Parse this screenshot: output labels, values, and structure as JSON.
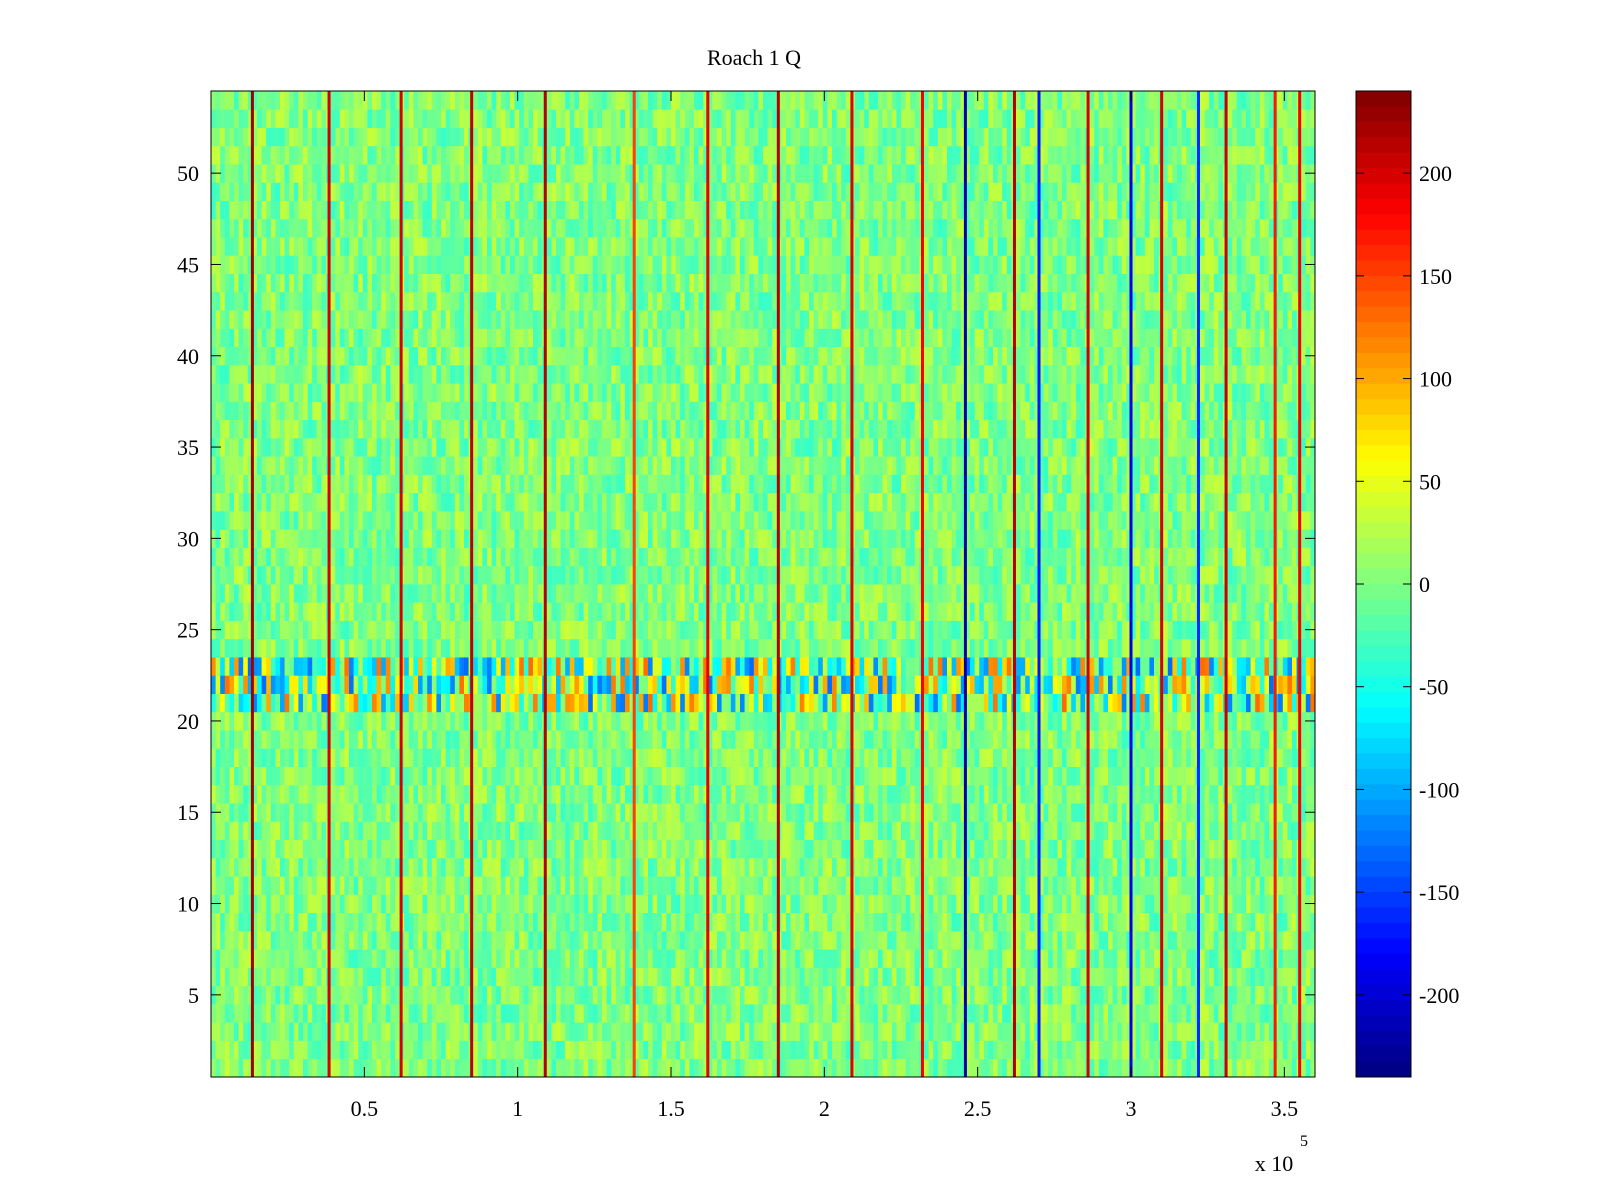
{
  "chart_data": {
    "type": "heatmap",
    "title": "Roach 1 Q",
    "xlabel": "",
    "ylabel": "",
    "xlim": [
      0,
      360000
    ],
    "ylim": [
      0.5,
      54.5
    ],
    "x_ticks": [
      {
        "value": 50000,
        "label": "0.5"
      },
      {
        "value": 100000,
        "label": "1"
      },
      {
        "value": 150000,
        "label": "1.5"
      },
      {
        "value": 200000,
        "label": "2"
      },
      {
        "value": 250000,
        "label": "2.5"
      },
      {
        "value": 300000,
        "label": "3"
      },
      {
        "value": 350000,
        "label": "3.5"
      }
    ],
    "x_multiplier_base": "x 10",
    "x_multiplier_exponent": "5",
    "y_ticks": [
      {
        "value": 5,
        "label": "5"
      },
      {
        "value": 10,
        "label": "10"
      },
      {
        "value": 15,
        "label": "15"
      },
      {
        "value": 20,
        "label": "20"
      },
      {
        "value": 25,
        "label": "25"
      },
      {
        "value": 30,
        "label": "30"
      },
      {
        "value": 35,
        "label": "35"
      },
      {
        "value": 40,
        "label": "40"
      },
      {
        "value": 45,
        "label": "45"
      },
      {
        "value": 50,
        "label": "50"
      }
    ],
    "rows": 54,
    "colormap": "jet",
    "clim": [
      -240,
      240
    ],
    "background_level": 0,
    "colorbar_ticks": [
      {
        "value": 200,
        "label": "200"
      },
      {
        "value": 150,
        "label": "150"
      },
      {
        "value": 100,
        "label": "100"
      },
      {
        "value": 50,
        "label": "50"
      },
      {
        "value": 0,
        "label": "0"
      },
      {
        "value": -50,
        "label": "-50"
      },
      {
        "value": -100,
        "label": "-100"
      },
      {
        "value": -150,
        "label": "-150"
      },
      {
        "value": -200,
        "label": "-200"
      }
    ],
    "spike_columns": [
      {
        "x": 13500,
        "value": 225
      },
      {
        "x": 38500,
        "value": 200
      },
      {
        "x": 62000,
        "value": 200
      },
      {
        "x": 85000,
        "value": 210
      },
      {
        "x": 109000,
        "value": 215
      },
      {
        "x": 138000,
        "value": 150
      },
      {
        "x": 162000,
        "value": 190
      },
      {
        "x": 185000,
        "value": 215
      },
      {
        "x": 209000,
        "value": 195
      },
      {
        "x": 232000,
        "value": 185
      },
      {
        "x": 246000,
        "value": -220
      },
      {
        "x": 262000,
        "value": 215
      },
      {
        "x": 270000,
        "value": -170
      },
      {
        "x": 286000,
        "value": 200
      },
      {
        "x": 300000,
        "value": -190
      },
      {
        "x": 310000,
        "value": 200
      },
      {
        "x": 322000,
        "value": -160
      },
      {
        "x": 331000,
        "value": 205
      },
      {
        "x": 347000,
        "value": 170
      },
      {
        "x": 355000,
        "value": 185
      }
    ],
    "anomalous_rows": [
      {
        "from": 21,
        "to": 23,
        "note": "high variance band"
      }
    ]
  }
}
